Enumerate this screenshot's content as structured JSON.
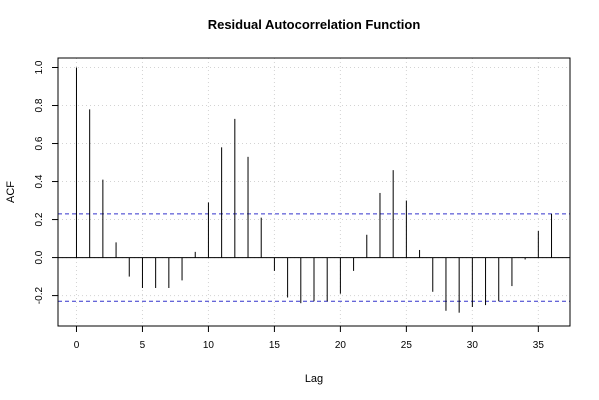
{
  "chart_data": {
    "type": "bar",
    "title": "Residual Autocorrelation Function",
    "xlabel": "Lag",
    "ylabel": "ACF",
    "xlim": [
      -1.4,
      37.4
    ],
    "ylim": [
      -0.36,
      1.05
    ],
    "xticks": [
      0,
      5,
      10,
      15,
      20,
      25,
      30,
      35
    ],
    "xtick_labels": [
      "0",
      "5",
      "10",
      "15",
      "20",
      "25",
      "30",
      "35"
    ],
    "yticks": [
      -0.2,
      0.0,
      0.2,
      0.4,
      0.6,
      0.8,
      1.0
    ],
    "ytick_labels": [
      "-0.2",
      "0.0",
      "0.2",
      "0.4",
      "0.6",
      "0.8",
      "1.0"
    ],
    "grid": true,
    "lags": [
      0,
      1,
      2,
      3,
      4,
      5,
      6,
      7,
      8,
      9,
      10,
      11,
      12,
      13,
      14,
      15,
      16,
      17,
      18,
      19,
      20,
      21,
      22,
      23,
      24,
      25,
      26,
      27,
      28,
      29,
      30,
      31,
      32,
      33,
      34,
      35,
      36
    ],
    "values": [
      1.0,
      0.78,
      0.41,
      0.08,
      -0.1,
      -0.16,
      -0.16,
      -0.16,
      -0.12,
      0.03,
      0.29,
      0.58,
      0.73,
      0.53,
      0.21,
      -0.07,
      -0.21,
      -0.24,
      -0.23,
      -0.23,
      -0.19,
      -0.07,
      0.12,
      0.34,
      0.46,
      0.3,
      0.04,
      -0.18,
      -0.28,
      -0.29,
      -0.26,
      -0.25,
      -0.23,
      -0.15,
      -0.01,
      0.14,
      0.23
    ],
    "confidence_bounds": [
      0.23,
      -0.23
    ],
    "colors": {
      "bars": "#000000",
      "zero_line": "#000000",
      "confidence": "#3333cc",
      "grid": "#d3d3d3",
      "frame": "#000000"
    }
  }
}
